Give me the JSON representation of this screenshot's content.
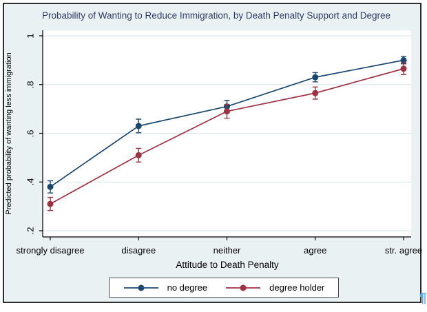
{
  "chart_data": {
    "type": "line",
    "title": "Probability of Wanting to Reduce Immigration, by Death Penalty Support and Degree",
    "categories": [
      "strongly disagree",
      "disagree",
      "neither",
      "agree",
      "str. agree"
    ],
    "xlabel": "Attitude to Death Penalty",
    "ylabel": "Predicted probability of wanting less immigration",
    "ylim": [
      0.2,
      1.0
    ],
    "yticks": [
      1,
      0.8,
      0.6,
      0.4,
      0.2
    ],
    "ytick_labels": [
      "1",
      ".8",
      ".6",
      ".4",
      ".2"
    ],
    "grid": true,
    "legend_position": "bottom-center",
    "series": [
      {
        "name": "no degree",
        "color": "#1a476f",
        "values": [
          0.38,
          0.63,
          0.71,
          0.83,
          0.9
        ],
        "ci_low": [
          0.355,
          0.602,
          0.685,
          0.811,
          0.885
        ],
        "ci_high": [
          0.405,
          0.658,
          0.735,
          0.849,
          0.915
        ]
      },
      {
        "name": "degree holder",
        "color": "#9e3240",
        "values": [
          0.31,
          0.51,
          0.69,
          0.765,
          0.865
        ],
        "ci_low": [
          0.283,
          0.482,
          0.662,
          0.74,
          0.841
        ],
        "ci_high": [
          0.337,
          0.538,
          0.718,
          0.79,
          0.889
        ]
      }
    ],
    "colors": {
      "figure_background": "#eaf1f3",
      "plot_background": "#ffffff",
      "gridline": "#d8e6ea",
      "axis": "#000000",
      "title_text": "#2f3a63"
    }
  },
  "page": {
    "paragraph_mark": "¶"
  }
}
